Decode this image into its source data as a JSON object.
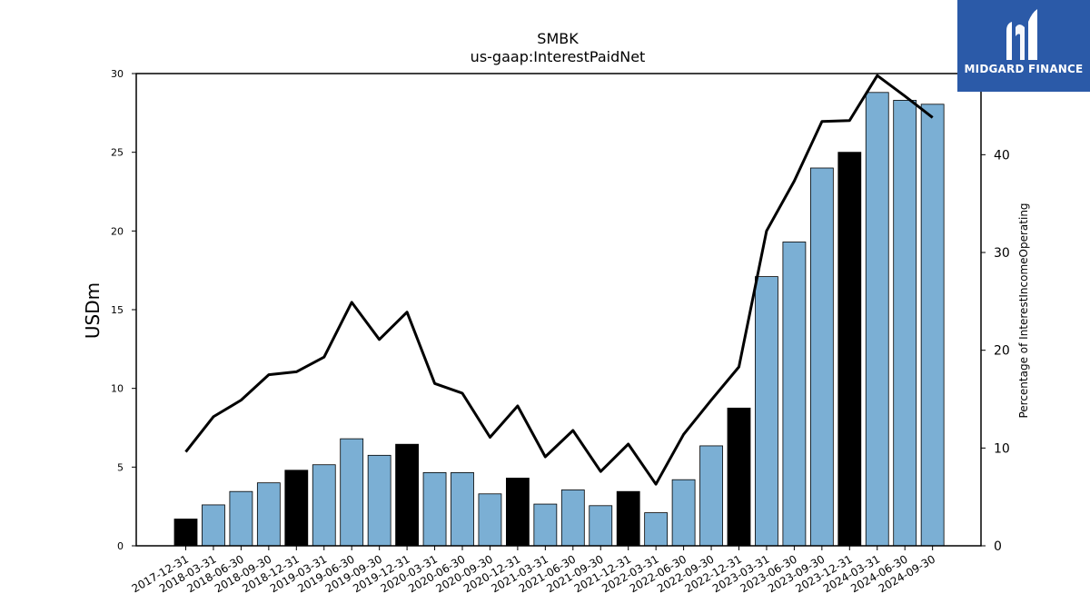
{
  "chart_data": {
    "type": "bar",
    "title": "SMBK",
    "subtitle": "us-gaap:InterestPaidNet",
    "ylabel": "USDm",
    "y2label": "Percentage of InterestIncomeOperating",
    "ylim": [
      0,
      30
    ],
    "y2lim": [
      0,
      48.3
    ],
    "yticks": [
      "0",
      "5",
      "10",
      "15",
      "20",
      "25",
      "30"
    ],
    "y2ticks": [
      "0",
      "10",
      "20",
      "30",
      "40"
    ],
    "categories": [
      "2017-12-31",
      "2018-03-31",
      "2018-06-30",
      "2018-09-30",
      "2018-12-31",
      "2019-03-31",
      "2019-06-30",
      "2019-09-30",
      "2019-12-31",
      "2020-03-31",
      "2020-06-30",
      "2020-09-30",
      "2020-12-31",
      "2021-03-31",
      "2021-06-30",
      "2021-09-30",
      "2021-12-31",
      "2022-03-31",
      "2022-06-30",
      "2022-09-30",
      "2022-12-31",
      "2023-03-31",
      "2023-06-30",
      "2023-09-30",
      "2023-12-31",
      "2024-03-31",
      "2024-06-30",
      "2024-09-30"
    ],
    "series": [
      {
        "axis": "left",
        "kind": "bar",
        "values": [
          1.7,
          2.6,
          3.45,
          4.0,
          4.8,
          5.15,
          6.8,
          5.75,
          6.45,
          4.65,
          4.65,
          3.3,
          4.3,
          2.65,
          3.55,
          2.55,
          3.45,
          2.1,
          4.2,
          6.35,
          8.75,
          17.1,
          19.3,
          24.0,
          25.0,
          28.8,
          28.3,
          28.05
        ],
        "annual": [
          true,
          false,
          false,
          false,
          true,
          false,
          false,
          false,
          true,
          false,
          false,
          false,
          true,
          false,
          false,
          false,
          true,
          false,
          false,
          false,
          true,
          false,
          false,
          false,
          true,
          false,
          false,
          false
        ]
      },
      {
        "axis": "right",
        "kind": "line",
        "values": [
          9.6,
          13.2,
          14.9,
          17.5,
          17.8,
          19.3,
          24.9,
          21.1,
          23.9,
          16.6,
          15.6,
          11.1,
          14.3,
          9.1,
          11.8,
          7.6,
          10.4,
          6.3,
          11.4,
          14.9,
          18.3,
          32.2,
          37.3,
          43.4,
          43.5,
          48.1,
          46.0,
          43.8
        ]
      }
    ],
    "colors": {
      "bar": "#7bafd4",
      "bar_annual": "#000000",
      "line": "#000000"
    },
    "grid": false,
    "legend": "none"
  },
  "logo": {
    "text": "MIDGARD FINANCE",
    "bg": "#2b5aa8"
  }
}
